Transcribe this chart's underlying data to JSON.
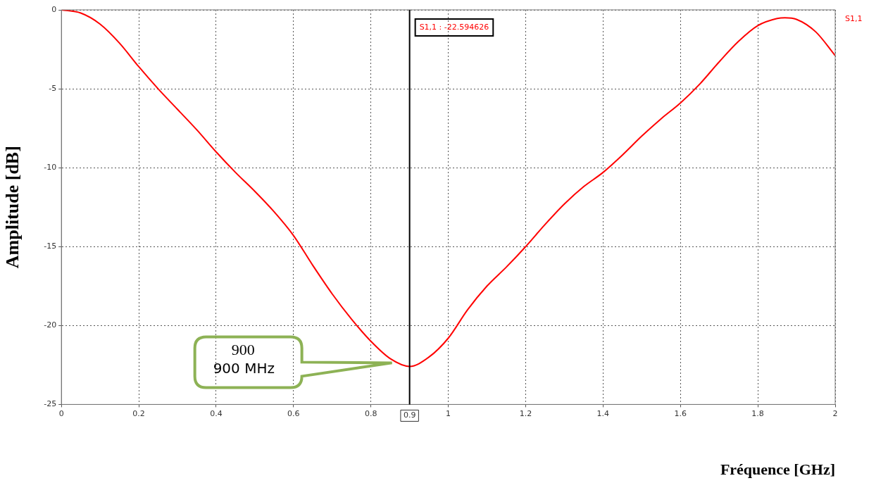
{
  "chart_data": {
    "type": "line",
    "xlabel": "Fréquence [GHz]",
    "ylabel": "Amplitude [dB]",
    "xlim": [
      0,
      2
    ],
    "xticks": [
      0,
      0.2,
      0.4,
      0.6,
      0.8,
      1,
      1.2,
      1.4,
      1.6,
      1.8,
      2
    ],
    "ylim": [
      -25,
      0
    ],
    "yticks": [
      -25,
      -20,
      -15,
      -10,
      -5,
      0
    ],
    "grid": true,
    "marker": "none",
    "line_style": "solid",
    "series": [
      {
        "name": "S1,1",
        "color": "#ff0000",
        "x": [
          0,
          0.05,
          0.1,
          0.15,
          0.2,
          0.25,
          0.3,
          0.35,
          0.4,
          0.45,
          0.5,
          0.55,
          0.6,
          0.65,
          0.7,
          0.75,
          0.8,
          0.85,
          0.9,
          0.95,
          1,
          1.05,
          1.1,
          1.15,
          1.2,
          1.25,
          1.3,
          1.35,
          1.4,
          1.45,
          1.5,
          1.55,
          1.6,
          1.65,
          1.7,
          1.75,
          1.8,
          1.85,
          1.87,
          1.9,
          1.95,
          2
        ],
        "values": [
          0,
          -0.2,
          -0.9,
          -2.1,
          -3.6,
          -5.0,
          -6.3,
          -7.6,
          -9.0,
          -10.3,
          -11.5,
          -12.8,
          -14.3,
          -16.2,
          -18.0,
          -19.6,
          -21.0,
          -22.1,
          -22.59,
          -22.0,
          -20.8,
          -19.0,
          -17.5,
          -16.3,
          -15.0,
          -13.6,
          -12.3,
          -11.2,
          -10.3,
          -9.2,
          -8.0,
          -6.9,
          -5.9,
          -4.7,
          -3.3,
          -2.0,
          -1.0,
          -0.55,
          -0.5,
          -0.6,
          -1.4,
          -2.9
        ]
      }
    ],
    "ref_lines": [
      {
        "axis": "x",
        "value": 0.9,
        "label": "0.9",
        "color": "#000000"
      }
    ],
    "annotations": [
      "S1,1 : -22.594626",
      "900 MHz",
      "900"
    ]
  }
}
